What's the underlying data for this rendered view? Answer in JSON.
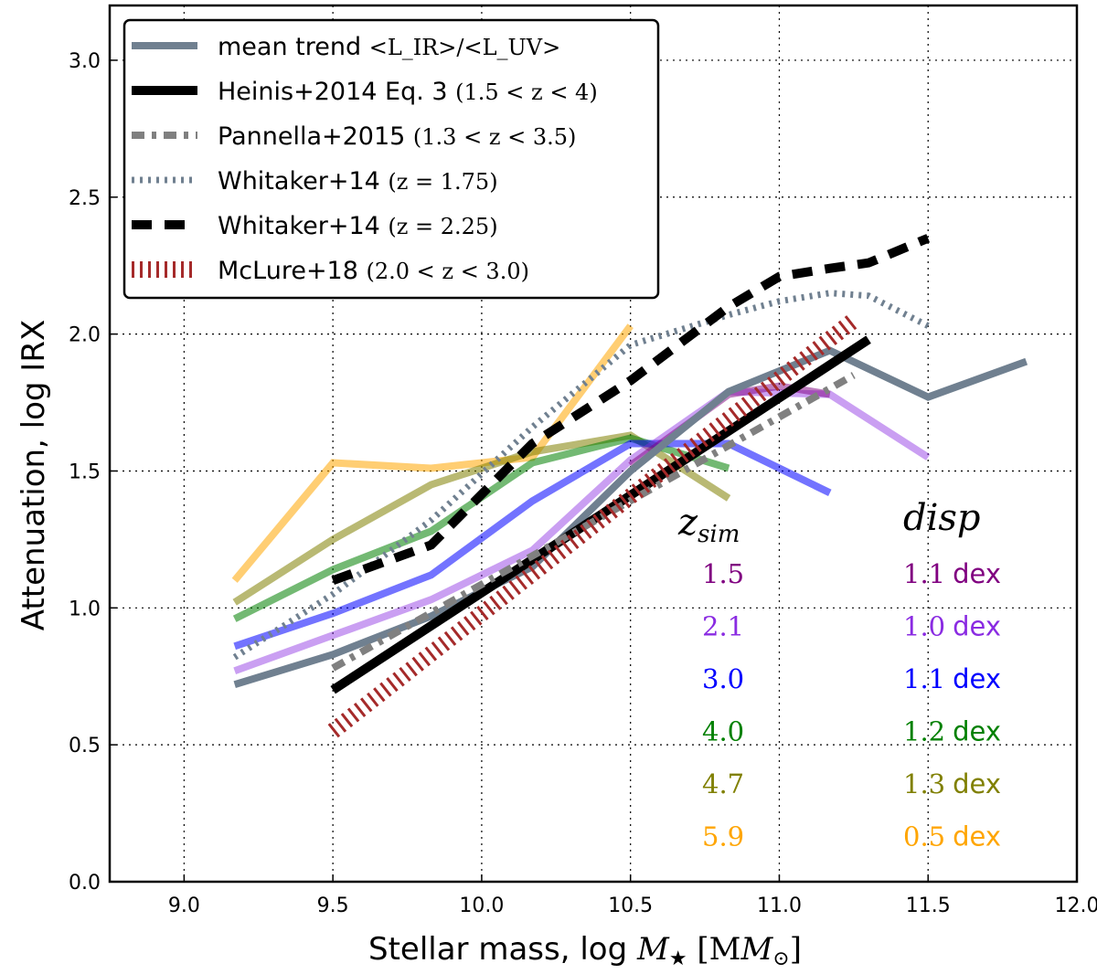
{
  "chart_data": {
    "type": "line",
    "xlabel": "Stellar mass, log",
    "xlabel_math": "M",
    "xlabel_unit": "[M",
    "ylabel": "Attenuation, log IRX",
    "xlim": [
      8.75,
      12.0
    ],
    "ylim": [
      0.0,
      3.2
    ],
    "xticks": [
      "9.0",
      "9.5",
      "10.0",
      "10.5",
      "11.0",
      "11.5",
      "12.0"
    ],
    "yticks": [
      "0.0",
      "0.5",
      "1.0",
      "1.5",
      "2.0",
      "2.5",
      "3.0"
    ],
    "grid": true,
    "legend_position": "top-left",
    "legend": [
      {
        "label": "mean trend",
        "math": "<L_IR>/<L_UV>",
        "style": "solid-gray"
      },
      {
        "label": "Heinis+2014 Eq. 3",
        "math": "(1.5 < z < 4)",
        "style": "solid-black"
      },
      {
        "label": "Pannella+2015",
        "math": "(1.3 < z < 3.5)",
        "style": "dashdot-gray"
      },
      {
        "label": "Whitaker+14",
        "math": "(z = 1.75)",
        "style": "dotted-slate"
      },
      {
        "label": "Whitaker+14",
        "math": "(z = 2.25)",
        "style": "dashed-black"
      },
      {
        "label": "McLure+18",
        "math": "(2.0 < z < 3.0)",
        "style": "dotted-red"
      }
    ],
    "series": [
      {
        "name": "z_sim 5.9",
        "color": "#FFA500",
        "x": [
          9.17,
          9.5,
          9.83,
          10.17,
          10.5
        ],
        "y": [
          1.1,
          1.53,
          1.51,
          1.55,
          2.03
        ]
      },
      {
        "name": "z_sim 4.7",
        "color": "#808000",
        "x": [
          9.17,
          9.5,
          9.83,
          10.17,
          10.5,
          10.83
        ],
        "y": [
          1.02,
          1.25,
          1.45,
          1.57,
          1.63,
          1.4
        ]
      },
      {
        "name": "z_sim 4.0",
        "color": "#008000",
        "x": [
          9.17,
          9.5,
          9.83,
          10.17,
          10.5,
          10.83
        ],
        "y": [
          0.96,
          1.14,
          1.28,
          1.53,
          1.62,
          1.51
        ]
      },
      {
        "name": "z_sim 3.0",
        "color": "#0000FF",
        "x": [
          9.17,
          9.5,
          9.83,
          10.17,
          10.5,
          10.83,
          11.17
        ],
        "y": [
          0.86,
          0.98,
          1.12,
          1.39,
          1.6,
          1.6,
          1.42
        ]
      },
      {
        "name": "z_sim 2.1",
        "color": "#8A2BE2",
        "x": [
          9.17,
          9.5,
          9.83,
          10.17,
          10.5,
          10.83,
          11.17,
          11.5
        ],
        "y": [
          0.77,
          0.9,
          1.03,
          1.21,
          1.54,
          1.79,
          1.78,
          1.55
        ]
      },
      {
        "name": "z_sim 1.5",
        "color": "#800080",
        "x": [
          10.5,
          10.83,
          11.0,
          11.17
        ],
        "y": [
          1.52,
          1.78,
          1.81,
          1.78
        ]
      },
      {
        "name": "mean trend",
        "color": "#708090",
        "x": [
          9.17,
          9.5,
          9.83,
          10.17,
          10.5,
          10.83,
          11.17,
          11.5,
          11.83
        ],
        "y": [
          0.72,
          0.83,
          0.97,
          1.15,
          1.5,
          1.79,
          1.94,
          1.77,
          1.9
        ]
      },
      {
        "name": "Heinis+2014 Eq. 3",
        "color": "#000000",
        "x": [
          9.5,
          11.3
        ],
        "y": [
          0.7,
          1.98
        ]
      },
      {
        "name": "Pannella+2015",
        "color": "#808080",
        "x": [
          9.5,
          11.25
        ],
        "y": [
          0.78,
          1.85
        ]
      },
      {
        "name": "Whitaker+14 (z=1.75)",
        "color": "#708090",
        "x": [
          9.17,
          9.5,
          9.83,
          10.17,
          10.5,
          10.83,
          11.0,
          11.17,
          11.3,
          11.5
        ],
        "y": [
          0.82,
          1.05,
          1.32,
          1.66,
          1.96,
          2.07,
          2.12,
          2.15,
          2.14,
          2.03
        ]
      },
      {
        "name": "Whitaker+14 (z=2.25)",
        "color": "#000000",
        "x": [
          9.5,
          9.83,
          10.17,
          10.5,
          10.83,
          11.0,
          11.17,
          11.3,
          11.5
        ],
        "y": [
          1.1,
          1.23,
          1.6,
          1.83,
          2.1,
          2.21,
          2.24,
          2.26,
          2.35
        ]
      },
      {
        "name": "McLure+18",
        "color": "#A52A2A",
        "x": [
          9.5,
          11.25
        ],
        "y": [
          0.55,
          2.05
        ]
      }
    ],
    "annotations": {
      "zsim_header": "z",
      "zsim_sub": "sim",
      "disp_header": "disp",
      "rows": [
        {
          "z": "1.5",
          "disp": "1.1",
          "unit": "dex",
          "color": "#800080"
        },
        {
          "z": "2.1",
          "disp": "1.0",
          "unit": "dex",
          "color": "#8A2BE2"
        },
        {
          "z": "3.0",
          "disp": "1.1",
          "unit": "dex",
          "color": "#0000FF"
        },
        {
          "z": "4.0",
          "disp": "1.2",
          "unit": "dex",
          "color": "#008000"
        },
        {
          "z": "4.7",
          "disp": "1.3",
          "unit": "dex",
          "color": "#808000"
        },
        {
          "z": "5.9",
          "disp": "0.5",
          "unit": "dex",
          "color": "#FFA500"
        }
      ]
    }
  }
}
